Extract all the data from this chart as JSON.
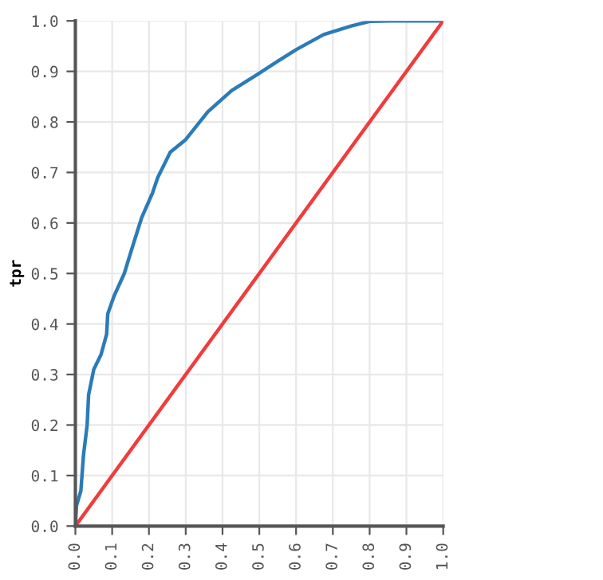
{
  "chart_data": {
    "type": "line",
    "ylabel": "tpr",
    "series": [
      {
        "color": "#2b7bb9",
        "x": [
          0,
          0.003,
          0.015,
          0.022,
          0.032,
          0.036,
          0.05,
          0.07,
          0.085,
          0.088,
          0.105,
          0.133,
          0.154,
          0.18,
          0.21,
          0.224,
          0.258,
          0.3,
          0.36,
          0.425,
          0.495,
          0.55,
          0.6,
          0.675,
          0.75,
          0.8,
          0.855,
          0.9,
          1.0
        ],
        "values": [
          0,
          0.04,
          0.07,
          0.14,
          0.2,
          0.26,
          0.31,
          0.34,
          0.38,
          0.42,
          0.455,
          0.5,
          0.55,
          0.61,
          0.66,
          0.69,
          0.74,
          0.765,
          0.82,
          0.862,
          0.894,
          0.92,
          0.943,
          0.973,
          0.99,
          0.999,
          1.0,
          1.0,
          1.0
        ]
      },
      {
        "color": "#f03c3c",
        "x": [
          0,
          1
        ],
        "values": [
          0,
          1
        ]
      }
    ],
    "xlim": [
      0,
      1
    ],
    "ylim": [
      0,
      1
    ],
    "xticks": [
      {
        "value": 0,
        "label": "0.0"
      },
      0.1,
      0.2,
      0.3,
      0.4,
      0.5,
      0.6,
      0.7,
      0.8,
      0.9,
      {
        "value": 1,
        "label": "1.0"
      }
    ],
    "yticks": [
      {
        "value": 0,
        "label": "0.0"
      },
      0.1,
      0.2,
      0.3,
      0.4,
      0.5,
      0.6,
      0.7,
      0.8,
      0.9,
      {
        "value": 1,
        "label": "1.0"
      }
    ],
    "grid": true
  }
}
